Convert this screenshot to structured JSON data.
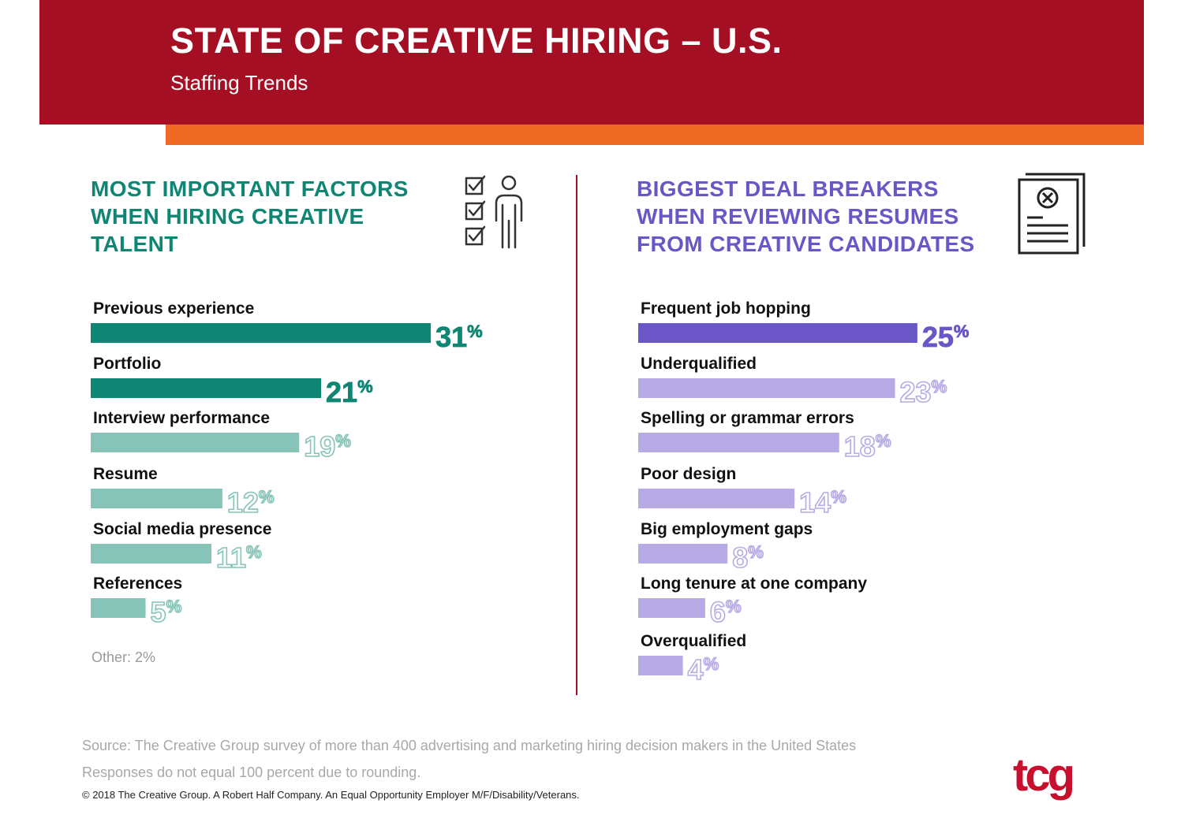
{
  "header": {
    "title": "STATE OF CREATIVE HIRING – U.S.",
    "subtitle": "Staffing Trends"
  },
  "colors": {
    "banner": "#a50f24",
    "stripe": "#ee6a24",
    "teal_dark": "#0f8573",
    "teal_light": "#85c4b7",
    "purple_dark": "#6a56c7",
    "purple_light": "#b7aae5"
  },
  "left_panel": {
    "heading_lines": [
      "MOST IMPORTANT FACTORS",
      "WHEN HIRING CREATIVE",
      "TALENT"
    ],
    "icon": "checklist-person-icon",
    "other_note": "Other: 2%"
  },
  "right_panel": {
    "heading_lines": [
      "BIGGEST DEAL BREAKERS",
      "WHEN REVIEWING RESUMES",
      "FROM CREATIVE CANDIDATES"
    ],
    "icon": "rejected-resume-icon"
  },
  "chart_data": [
    {
      "type": "bar",
      "orientation": "horizontal",
      "categories": [
        "Previous experience",
        "Portfolio",
        "Interview performance",
        "Resume",
        "Social media presence",
        "References"
      ],
      "values": [
        31,
        21,
        19,
        12,
        11,
        5
      ],
      "value_labels": [
        "31%",
        "21%",
        "19%",
        "12%",
        "11%",
        "5%"
      ],
      "highlight": [
        true,
        true,
        false,
        false,
        false,
        false
      ],
      "colors": {
        "highlight": "#0f8573",
        "normal": "#85c4b7"
      },
      "unit": "%",
      "xlim": [
        0,
        32
      ]
    },
    {
      "type": "bar",
      "orientation": "horizontal",
      "categories": [
        "Frequent job hopping",
        "Underqualified",
        "Spelling or grammar errors",
        "Poor design",
        "Big employment gaps",
        "Long tenure at one company",
        "Overqualified"
      ],
      "values": [
        25,
        23,
        18,
        14,
        8,
        6,
        4
      ],
      "value_labels": [
        "25%",
        "23%",
        "18%",
        "14%",
        "8%",
        "6%",
        "4%"
      ],
      "highlight": [
        true,
        false,
        false,
        false,
        false,
        false,
        false
      ],
      "colors": {
        "highlight": "#6a56c7",
        "normal": "#b7aae5"
      },
      "unit": "%",
      "xlim": [
        0,
        26
      ]
    }
  ],
  "footer": {
    "source": "Source: The Creative Group survey of more than 400 advertising and marketing hiring decision makers in the United States",
    "note": "Responses do not equal 100 percent due to rounding.",
    "copyright": "© 2018 The Creative Group. A Robert Half Company. An Equal Opportunity Employer M/F/Disability/Veterans.",
    "logo_text": "tcg"
  }
}
